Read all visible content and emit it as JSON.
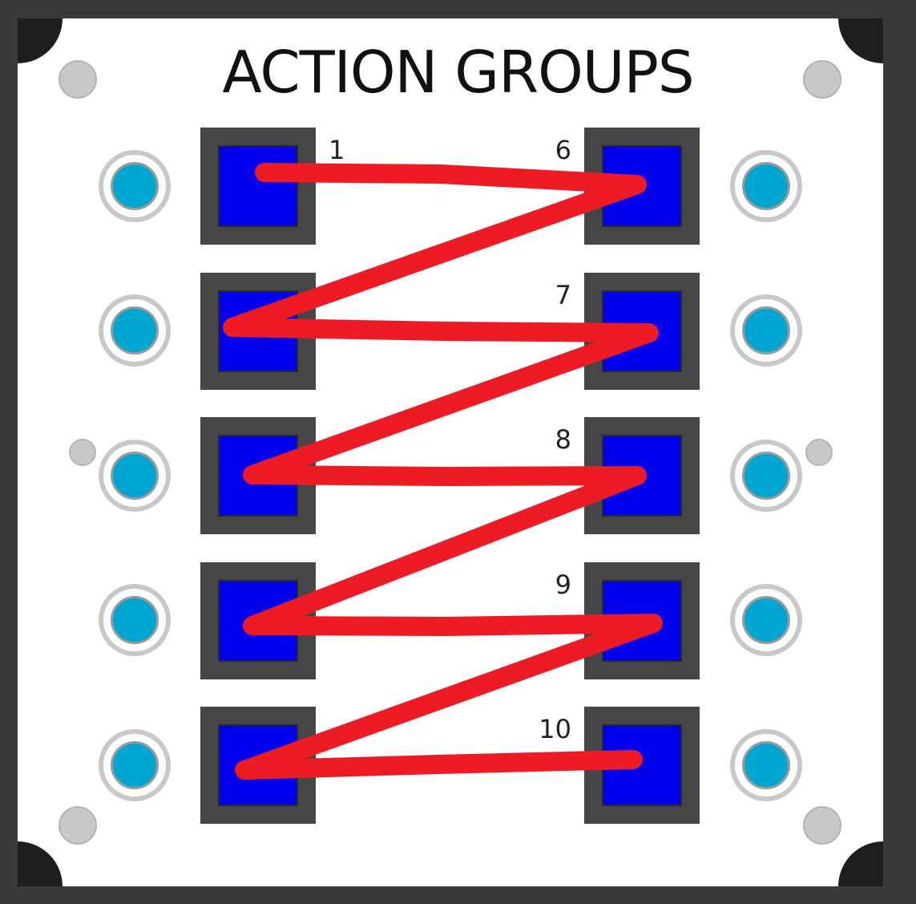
{
  "title": "ACTION GROUPS",
  "colors": {
    "background": "#3a3a3a",
    "panel": "#ffffff",
    "button_frame": "#464646",
    "button_face": "#0000ee",
    "indicator": "#00a6d2",
    "screw": "#c8c8c8",
    "annotation_line": "#ed1c24"
  },
  "left_column": [
    {
      "label": "1"
    },
    {
      "label": ""
    },
    {
      "label": ""
    },
    {
      "label": ""
    },
    {
      "label": ""
    }
  ],
  "right_column": [
    {
      "label": "6"
    },
    {
      "label": "7"
    },
    {
      "label": "8"
    },
    {
      "label": "9"
    },
    {
      "label": "10"
    }
  ],
  "icons": {
    "indicator": "indicator-light-icon",
    "screw": "panel-screw-icon"
  }
}
